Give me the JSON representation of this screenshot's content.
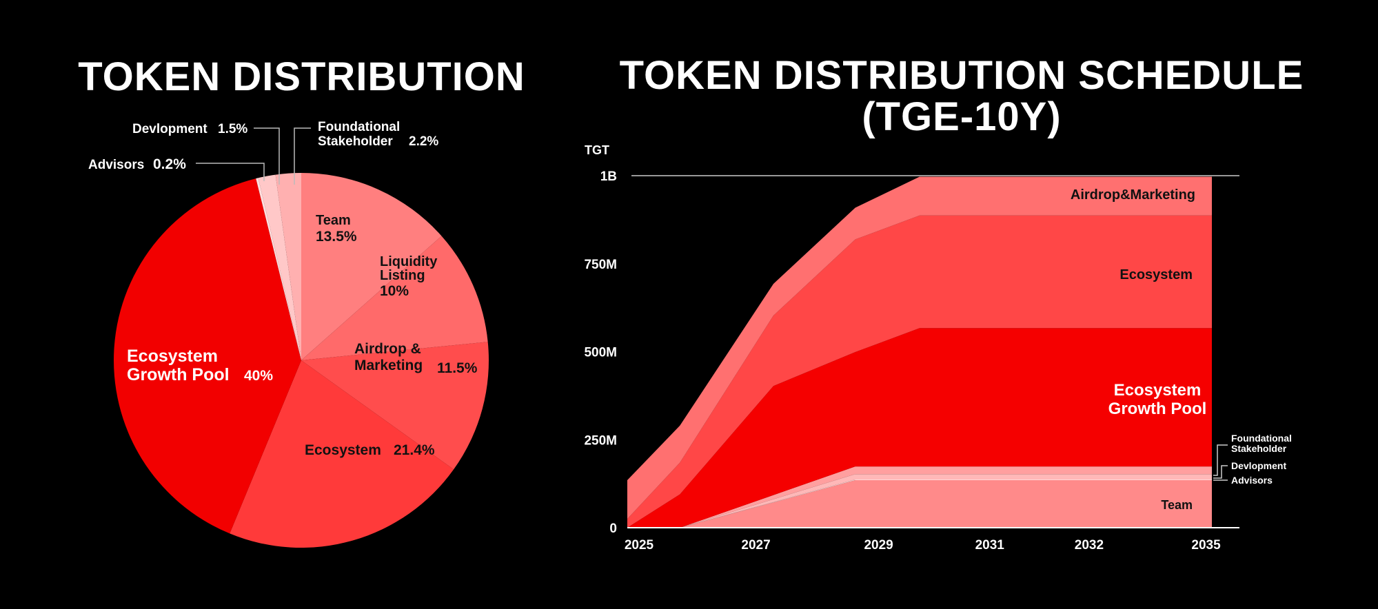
{
  "chart_data": [
    {
      "type": "pie",
      "title": "TOKEN DISTRIBUTION",
      "slices": [
        {
          "key": "team",
          "label": "Team",
          "value_label": "13.5%",
          "value": 13.5,
          "color": "#ff7f7f"
        },
        {
          "key": "liquidity",
          "label": "Liquidity Listing",
          "value_label": "10%",
          "value": 10,
          "color": "#ff6a6a"
        },
        {
          "key": "airdrop",
          "label": "Airdrop & Marketing",
          "value_label": "11.5%",
          "value": 11.5,
          "color": "#ff4d4d"
        },
        {
          "key": "ecosystem",
          "label": "Ecosystem",
          "value_label": "21.4%",
          "value": 21.4,
          "color": "#ff3a3a"
        },
        {
          "key": "growth",
          "label": "Ecosystem Growth Pool",
          "value_label": "40%",
          "value": 40,
          "color": "#f20000"
        },
        {
          "key": "advisors",
          "label": "Advisors",
          "value_label": "0.2%",
          "value": 0.2,
          "color": "#ffdede"
        },
        {
          "key": "development",
          "label": "Devlopment",
          "value_label": "1.5%",
          "value": 1.5,
          "color": "#ffc8c8"
        },
        {
          "key": "foundational",
          "label": "Foundational Stakeholder",
          "value_label": "2.2%",
          "value": 2.2,
          "color": "#ffb0b0"
        }
      ]
    },
    {
      "type": "area",
      "title": "TOKEN DISTRIBUTION SCHEDULE (TGE-10Y)",
      "unit_label": "TGT",
      "y_ticks": [
        "0",
        "250M",
        "500M",
        "750M",
        "1B"
      ],
      "ylim": [
        0,
        1000
      ],
      "x_ticks": [
        {
          "label": "2025",
          "x": 2025.2
        },
        {
          "label": "2027",
          "x": 2027.2
        },
        {
          "label": "2029",
          "x": 2029.3
        },
        {
          "label": "2031",
          "x": 2031.2
        },
        {
          "label": "2032",
          "x": 2032.9
        },
        {
          "label": "2035",
          "x": 2034.9
        }
      ],
      "xlim": [
        2025,
        2035
      ],
      "stack_order_bottom_to_top": [
        "team",
        "advisors",
        "development",
        "foundational",
        "growth",
        "ecosystem",
        "airdrop"
      ],
      "series": [
        {
          "key": "team",
          "name": "Team",
          "color": "#ff8a8a",
          "x": [
            2025,
            2025.9,
            2028.9,
            2035
          ],
          "y": [
            0,
            0,
            135,
            135
          ]
        },
        {
          "key": "advisors",
          "name": "Advisors",
          "color": "#ffd6d6",
          "x": [
            2025,
            2025.9,
            2028.9,
            2035
          ],
          "y": [
            0,
            0,
            2,
            2
          ]
        },
        {
          "key": "development",
          "name": "Devlopment",
          "color": "#ffb8b8",
          "x": [
            2025,
            2025.9,
            2028.9,
            2035
          ],
          "y": [
            0,
            0,
            15,
            15
          ]
        },
        {
          "key": "foundational",
          "name": "Foundational Stakeholder",
          "color": "#ff9f9f",
          "x": [
            2025,
            2025.9,
            2028.9,
            2035
          ],
          "y": [
            0,
            0,
            22,
            22
          ]
        },
        {
          "key": "growth",
          "name": "Ecosystem Growth Pool",
          "color": "#f50000",
          "x": [
            2025,
            2025.9,
            2027.5,
            2028.9,
            2030,
            2035
          ],
          "y": [
            0,
            95,
            310,
            325,
            393,
            393
          ]
        },
        {
          "key": "ecosystem",
          "name": "Ecosystem",
          "color": "#ff4747",
          "x": [
            2025,
            2025.9,
            2027.5,
            2028.9,
            2030,
            2035
          ],
          "y": [
            25,
            90,
            200,
            320,
            320,
            320
          ]
        },
        {
          "key": "airdrop",
          "name": "Airdrop&Marketing",
          "color": "#ff7070",
          "x": [
            2025,
            2025.9,
            2027.5,
            2028.9,
            2030,
            2035
          ],
          "y": [
            110,
            105,
            90,
            90,
            110,
            110
          ]
        }
      ]
    }
  ]
}
